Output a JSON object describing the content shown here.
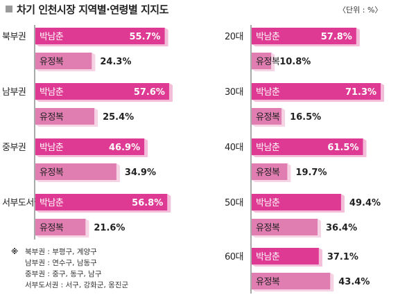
{
  "title": "차기 인천시장 지역별·연령별 지지도",
  "unit": "〈단위 : %〉",
  "colors": {
    "candidate_a": "#de3a93",
    "candidate_a_shadow": "#f3bcd9",
    "candidate_b": "#e07eb2",
    "candidate_b_shadow": "#f6d2e5"
  },
  "chart_data": [
    {
      "type": "bar",
      "orientation": "horizontal",
      "xlim": [
        0,
        100
      ],
      "categories": [
        "북부권",
        "남부권",
        "중부권",
        "서부도서권"
      ],
      "series": [
        {
          "name": "박남춘",
          "values": [
            55.7,
            57.6,
            46.9,
            56.8
          ]
        },
        {
          "name": "유정복",
          "values": [
            24.3,
            25.4,
            34.9,
            21.6
          ]
        }
      ]
    },
    {
      "type": "bar",
      "orientation": "horizontal",
      "xlim": [
        0,
        100
      ],
      "categories": [
        "20대",
        "30대",
        "40대",
        "50대",
        "60대"
      ],
      "series": [
        {
          "name": "박남춘",
          "values": [
            57.8,
            71.3,
            61.5,
            49.4,
            37.1
          ]
        },
        {
          "name": "유정복",
          "values": [
            10.8,
            16.5,
            19.7,
            36.4,
            43.4
          ]
        }
      ]
    }
  ],
  "notes": [
    {
      "mark": "※",
      "text": "북부권 : 부평구, 계양구"
    },
    {
      "mark": "",
      "text": "남부권 : 연수구, 남동구"
    },
    {
      "mark": "",
      "text": "중부권 : 중구, 동구, 남구"
    },
    {
      "mark": "",
      "text": "서부도서권 : 서구, 강화군, 옹진군"
    }
  ]
}
